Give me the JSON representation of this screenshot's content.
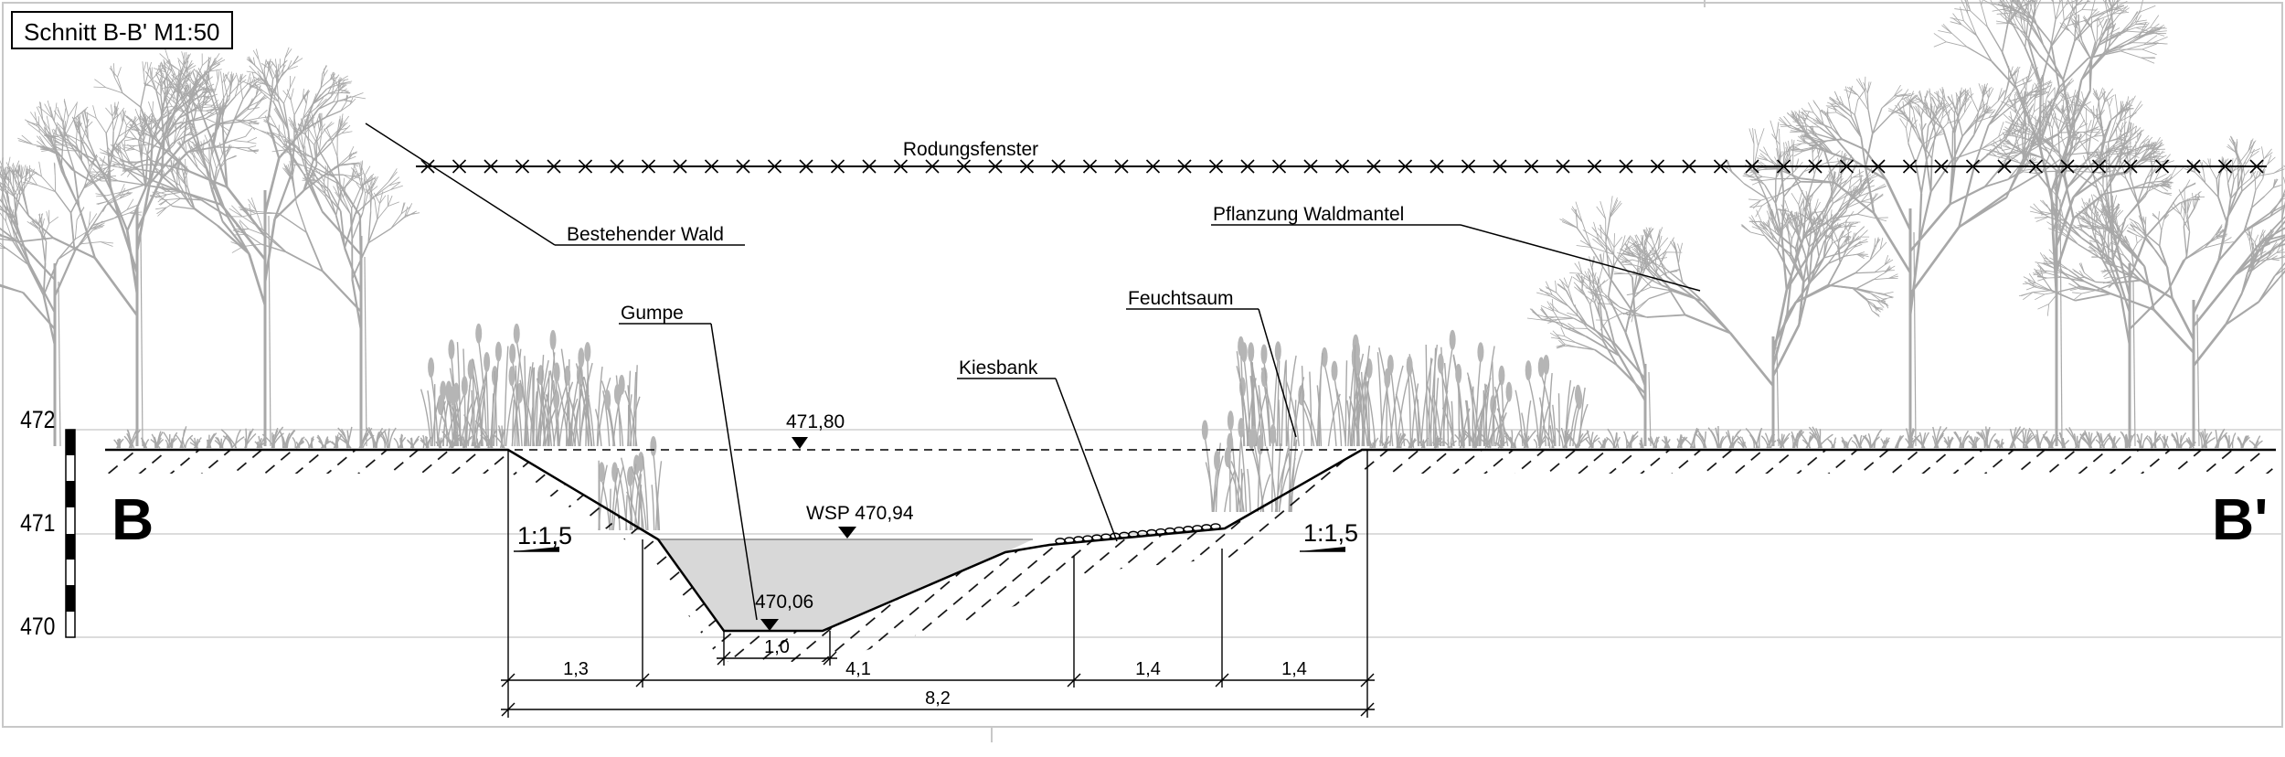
{
  "title": "Schnitt B-B' M1:50",
  "labels": {
    "rodungsfenster": "Rodungsfenster",
    "bestehender_wald": "Bestehender Wald",
    "pflanzung_waldmantel": "Pflanzung Waldmantel",
    "gumpe": "Gumpe",
    "feuchtsaum": "Feuchtsaum",
    "kiesbank": "Kiesbank"
  },
  "section_marks": {
    "left": "B",
    "right": "B'"
  },
  "elevations": {
    "terrain": "471,80",
    "water_surface": "WSP 470,94",
    "pool_bottom": "470,06"
  },
  "slopes": {
    "left": "1:1,5",
    "right": "1:1,5"
  },
  "scale_bar": {
    "ticks": [
      "472",
      "471",
      "470"
    ]
  },
  "dimensions": {
    "segments": [
      "1,3",
      "4,1",
      "1,4",
      "1,4"
    ],
    "pool_bottom": "1,0",
    "total": "8,2"
  },
  "colors": {
    "line": "#000000",
    "vegetation": "#a0a0a0",
    "water": "#d8d8d8",
    "grid": "#d0d0d0"
  }
}
